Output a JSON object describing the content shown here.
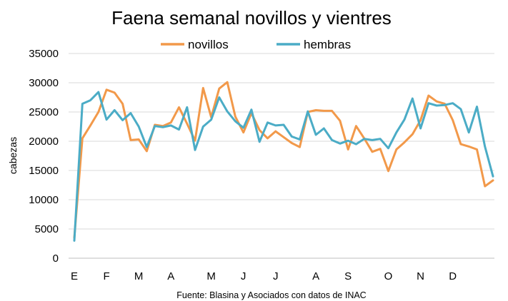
{
  "chart_data": {
    "type": "line",
    "title": "Faena semanal novillos y vientres",
    "ylabel": "cabezas",
    "xlabel": "",
    "source": "Fuente: Blasina y Asociados con datos de INAC",
    "ylim": [
      0,
      35000
    ],
    "yticks": [
      0,
      5000,
      10000,
      15000,
      20000,
      25000,
      30000,
      35000
    ],
    "grid": true,
    "legend_position": "top",
    "weeks": 53,
    "month_labels": [
      {
        "label": "E",
        "week": 1
      },
      {
        "label": "F",
        "week": 5
      },
      {
        "label": "M",
        "week": 9
      },
      {
        "label": "A",
        "week": 13
      },
      {
        "label": "M",
        "week": 18
      },
      {
        "label": "J",
        "week": 22
      },
      {
        "label": "J",
        "week": 26
      },
      {
        "label": "A",
        "week": 31
      },
      {
        "label": "S",
        "week": 35
      },
      {
        "label": "O",
        "week": 40
      },
      {
        "label": "N",
        "week": 44
      },
      {
        "label": "D",
        "week": 48
      }
    ],
    "series": [
      {
        "name": "novillos",
        "color": "#f2994a",
        "values": [
          3500,
          20500,
          22700,
          25000,
          28800,
          28300,
          26400,
          20200,
          20300,
          18300,
          22800,
          22600,
          23200,
          25800,
          23000,
          20100,
          29100,
          24100,
          29000,
          30100,
          24200,
          21500,
          24800,
          21900,
          20500,
          21700,
          20700,
          19700,
          19000,
          25000,
          25300,
          25200,
          25200,
          23500,
          18600,
          22600,
          20500,
          18200,
          18700,
          14900,
          18600,
          19800,
          21200,
          23600,
          27800,
          26800,
          26400,
          23600,
          19500,
          19100,
          18600,
          12300,
          13300
        ]
      },
      {
        "name": "hembras",
        "color": "#4bacc6",
        "values": [
          3000,
          26400,
          27000,
          28400,
          23700,
          25300,
          23600,
          24800,
          22500,
          19000,
          22600,
          22400,
          22700,
          22000,
          25800,
          18500,
          22500,
          23700,
          27500,
          25100,
          23400,
          22300,
          25400,
          19900,
          23200,
          22700,
          22800,
          20800,
          20300,
          25100,
          21100,
          22200,
          20200,
          19600,
          20100,
          19500,
          20400,
          20200,
          20400,
          18800,
          21500,
          23700,
          27300,
          22200,
          26500,
          26100,
          26200,
          26500,
          25500,
          21500,
          25900,
          19100,
          14000
        ]
      }
    ]
  }
}
